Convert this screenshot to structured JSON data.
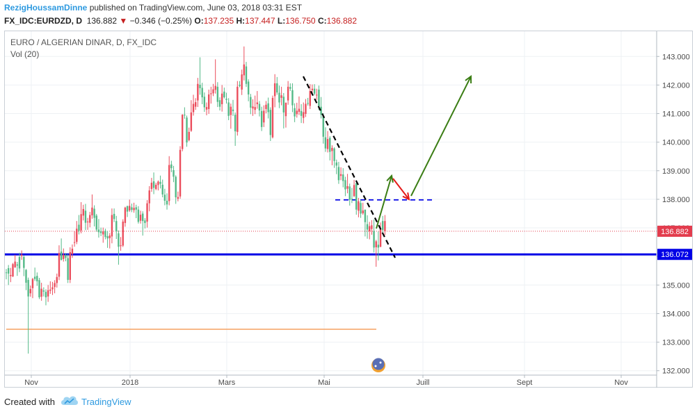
{
  "header": {
    "author": "RezigHoussamDinne",
    "published_text": "published on TradingView.com, June 03, 2018 03:31 EST",
    "symbol": "FX_IDC:EURDZD, D",
    "last": "136.882",
    "change_arrow": "▼",
    "change": "−0.346 (−0.25%)",
    "o_label": "O:",
    "o_value": "137.235",
    "h_label": "H:",
    "h_value": "137.447",
    "l_label": "L:",
    "l_value": "136.750",
    "c_label": "C:",
    "c_value": "136.882"
  },
  "legend": {
    "title": "EURO / ALGERIAN DINAR, D, FX_IDC",
    "volume": "Vol (20)"
  },
  "footer": {
    "created_with": "Created with",
    "brand": "TradingView",
    "logo_icon": "tradingview-cloud-icon"
  },
  "colors": {
    "up": "#53b987",
    "down": "#eb4d5c",
    "support": "#0000e6",
    "resistance_dashed": "#0000e6",
    "projection": "#3a7d14",
    "pullback": "#e41a1a",
    "trend": "#000000",
    "low_line": "#f5a060",
    "price_tag": "#e33c4d"
  },
  "chart_data": {
    "type": "candlestick",
    "title": "EURO / ALGERIAN DINAR, D, FX_IDC",
    "ylim": [
      132.0,
      143.5
    ],
    "y_ticks": [
      "132.000",
      "133.000",
      "134.000",
      "135.000",
      "136.000",
      "137.000",
      "138.000",
      "139.000",
      "140.000",
      "141.000",
      "142.000",
      "143.000"
    ],
    "x_ticks": [
      "Nov",
      "2018",
      "Mars",
      "Mai",
      "Juill",
      "Sept",
      "Nov"
    ],
    "last_price": 136.882,
    "support_level": 136.072,
    "support_label": "136.072",
    "last_label": "136.882",
    "resistance_level": 137.98,
    "low_reference_level": 133.45,
    "series": [
      {
        "name": "EURDZD",
        "ohlc": [
          [
            135.43,
            135.56,
            135.2,
            135.44
          ],
          [
            135.4,
            135.7,
            135.0,
            135.59
          ],
          [
            135.35,
            135.6,
            135.1,
            135.31
          ],
          [
            135.73,
            135.77,
            135.28,
            135.3
          ],
          [
            135.82,
            136.06,
            135.6,
            135.62
          ],
          [
            135.68,
            135.81,
            135.32,
            135.72
          ],
          [
            135.58,
            136.13,
            135.45,
            135.98
          ],
          [
            136.06,
            136.21,
            135.88,
            136.02
          ],
          [
            135.6,
            136.04,
            135.31,
            135.98
          ],
          [
            135.08,
            135.56,
            134.82,
            135.53
          ],
          [
            134.6,
            135.26,
            132.6,
            135.18
          ],
          [
            134.86,
            134.98,
            134.59,
            134.71
          ],
          [
            135.21,
            135.25,
            134.54,
            134.89
          ],
          [
            135.21,
            135.61,
            135.14,
            135.29
          ],
          [
            135.13,
            135.44,
            134.97,
            135.32
          ],
          [
            134.57,
            135.25,
            134.51,
            135.17
          ],
          [
            134.87,
            135.08,
            134.45,
            134.59
          ],
          [
            134.77,
            134.92,
            134.6,
            134.81
          ],
          [
            134.57,
            134.85,
            134.29,
            134.76
          ],
          [
            134.82,
            135.0,
            134.41,
            134.6
          ],
          [
            134.84,
            135.13,
            134.69,
            134.8
          ],
          [
            134.92,
            135.11,
            134.65,
            134.85
          ],
          [
            135.07,
            135.17,
            134.71,
            134.93
          ],
          [
            135.28,
            135.4,
            134.91,
            135.07
          ],
          [
            136.12,
            136.39,
            135.17,
            135.29
          ],
          [
            135.88,
            136.63,
            135.86,
            136.17
          ],
          [
            136.06,
            136.28,
            135.82,
            135.91
          ],
          [
            135.95,
            136.12,
            135.83,
            136.05
          ],
          [
            135.18,
            136.08,
            135.07,
            135.94
          ],
          [
            136.15,
            136.32,
            135.07,
            135.18
          ],
          [
            136.27,
            136.42,
            135.95,
            136.08
          ],
          [
            136.5,
            136.88,
            136.34,
            136.48
          ],
          [
            136.97,
            137.24,
            136.43,
            136.51
          ],
          [
            136.9,
            137.45,
            136.77,
            137.11
          ],
          [
            137.48,
            137.9,
            136.81,
            136.91
          ],
          [
            137.66,
            137.81,
            137.26,
            137.43
          ],
          [
            137.18,
            137.84,
            136.92,
            137.6
          ],
          [
            137.22,
            137.35,
            136.93,
            137.2
          ],
          [
            137.45,
            137.56,
            137.02,
            137.18
          ],
          [
            137.71,
            138.17,
            137.32,
            137.44
          ],
          [
            137.35,
            137.79,
            137.05,
            137.67
          ],
          [
            136.94,
            137.49,
            136.87,
            137.43
          ],
          [
            136.85,
            137.31,
            136.66,
            136.94
          ],
          [
            136.82,
            137.01,
            136.71,
            136.88
          ],
          [
            136.88,
            137.01,
            136.48,
            136.77
          ],
          [
            136.68,
            136.97,
            136.6,
            136.9
          ],
          [
            136.63,
            136.89,
            136.3,
            136.71
          ],
          [
            136.73,
            136.82,
            136.28,
            136.64
          ],
          [
            137.45,
            137.68,
            136.46,
            136.7
          ],
          [
            137.31,
            137.68,
            137.2,
            137.49
          ],
          [
            136.88,
            137.42,
            136.61,
            137.24
          ],
          [
            136.34,
            136.91,
            135.71,
            136.81
          ],
          [
            136.39,
            136.68,
            136.2,
            136.36
          ],
          [
            137.22,
            137.3,
            136.33,
            136.38
          ],
          [
            137.71,
            137.74,
            137.04,
            137.17
          ],
          [
            137.57,
            137.78,
            137.38,
            137.76
          ],
          [
            137.77,
            137.99,
            137.56,
            137.61
          ],
          [
            137.63,
            137.85,
            137.55,
            137.72
          ],
          [
            137.7,
            137.88,
            137.53,
            137.62
          ],
          [
            137.64,
            137.81,
            137.34,
            137.72
          ],
          [
            137.21,
            137.76,
            137.15,
            137.64
          ],
          [
            137.46,
            137.6,
            137.15,
            137.25
          ],
          [
            137.24,
            137.58,
            136.73,
            137.5
          ],
          [
            137.17,
            137.34,
            136.98,
            137.26
          ],
          [
            137.86,
            137.97,
            137.01,
            137.22
          ],
          [
            138.31,
            138.46,
            137.58,
            137.86
          ],
          [
            138.58,
            138.75,
            138.26,
            138.36
          ],
          [
            138.4,
            138.94,
            138.18,
            138.63
          ],
          [
            138.51,
            138.58,
            138.32,
            138.36
          ],
          [
            138.62,
            138.66,
            138.31,
            138.5
          ],
          [
            138.54,
            138.83,
            138.38,
            138.61
          ],
          [
            138.17,
            138.69,
            138.07,
            138.51
          ],
          [
            137.95,
            138.37,
            137.79,
            138.16
          ],
          [
            137.82,
            138.21,
            137.64,
            137.95
          ],
          [
            139.2,
            139.51,
            137.79,
            137.94
          ],
          [
            139.09,
            139.35,
            138.95,
            139.22
          ],
          [
            138.79,
            139.17,
            138.6,
            139.02
          ],
          [
            138.07,
            138.84,
            137.84,
            138.79
          ],
          [
            138.08,
            138.27,
            137.93,
            138.02
          ],
          [
            139.73,
            139.86,
            138.02,
            138.1
          ],
          [
            140.96,
            140.98,
            139.68,
            139.76
          ],
          [
            140.95,
            141.22,
            140.82,
            140.96
          ],
          [
            139.99,
            140.93,
            139.84,
            140.86
          ],
          [
            140.36,
            140.51,
            140.03,
            140.07
          ],
          [
            141.04,
            141.47,
            140.36,
            140.4
          ],
          [
            141.34,
            141.66,
            140.93,
            141.05
          ],
          [
            141.4,
            141.54,
            141.13,
            141.24
          ],
          [
            142.04,
            142.25,
            141.23,
            141.46
          ],
          [
            141.89,
            142.97,
            141.66,
            142.01
          ],
          [
            141.57,
            142.08,
            141.33,
            141.9
          ],
          [
            141.22,
            141.74,
            141.06,
            141.59
          ],
          [
            141.23,
            141.39,
            140.94,
            141.14
          ],
          [
            141.67,
            141.84,
            140.99,
            141.16
          ],
          [
            141.71,
            141.94,
            141.35,
            141.68
          ],
          [
            141.85,
            142.04,
            141.61,
            141.71
          ],
          [
            141.97,
            142.9,
            141.7,
            141.83
          ],
          [
            141.41,
            142.1,
            141.23,
            141.94
          ],
          [
            141.24,
            141.57,
            141.11,
            141.47
          ],
          [
            141.7,
            142.0,
            141.07,
            141.33
          ],
          [
            141.57,
            141.91,
            141.53,
            141.77
          ],
          [
            141.48,
            141.73,
            141.35,
            141.52
          ],
          [
            140.92,
            141.54,
            140.77,
            141.39
          ],
          [
            141.24,
            141.35,
            140.47,
            140.95
          ],
          [
            141.09,
            141.48,
            140.92,
            141.14
          ],
          [
            140.38,
            141.04,
            139.87,
            140.96
          ],
          [
            141.94,
            142.14,
            140.23,
            140.36
          ],
          [
            141.97,
            142.14,
            141.92,
            142.01
          ],
          [
            142.37,
            142.54,
            141.65,
            141.84
          ],
          [
            142.72,
            143.35,
            142.16,
            142.34
          ],
          [
            142.04,
            142.81,
            141.93,
            142.65
          ],
          [
            141.67,
            142.2,
            141.43,
            142.12
          ],
          [
            141.21,
            141.69,
            140.98,
            141.58
          ],
          [
            141.25,
            141.5,
            140.92,
            141.18
          ],
          [
            141.23,
            141.63,
            140.98,
            141.13
          ],
          [
            141.39,
            141.79,
            141.17,
            141.33
          ],
          [
            141.11,
            141.44,
            140.9,
            141.34
          ],
          [
            140.53,
            141.24,
            140.39,
            141.09
          ],
          [
            141.1,
            141.29,
            140.53,
            140.69
          ],
          [
            141.31,
            141.44,
            141.01,
            141.16
          ],
          [
            141.05,
            141.56,
            140.83,
            141.36
          ],
          [
            140.25,
            141.22,
            140.04,
            141.13
          ],
          [
            141.55,
            141.63,
            140.13,
            140.17
          ],
          [
            142.06,
            142.38,
            141.22,
            141.61
          ],
          [
            141.74,
            142.28,
            141.66,
            142.06
          ],
          [
            141.39,
            141.98,
            141.19,
            141.73
          ],
          [
            141.64,
            141.94,
            141.29,
            141.55
          ],
          [
            141.04,
            141.72,
            140.48,
            141.59
          ],
          [
            141.38,
            141.39,
            140.51,
            140.91
          ],
          [
            141.94,
            142.14,
            141.31,
            141.46
          ],
          [
            141.87,
            142.06,
            141.79,
            141.93
          ],
          [
            141.29,
            142.06,
            141.05,
            141.82
          ],
          [
            140.9,
            141.36,
            140.7,
            141.19
          ],
          [
            141.1,
            141.38,
            140.86,
            140.98
          ],
          [
            141.17,
            141.6,
            140.95,
            141.06
          ],
          [
            140.92,
            141.33,
            140.67,
            141.09
          ],
          [
            141.05,
            141.39,
            140.66,
            140.85
          ],
          [
            141.34,
            141.51,
            140.88,
            140.99
          ],
          [
            141.36,
            141.55,
            141.28,
            141.37
          ],
          [
            141.79,
            142.03,
            141.16,
            141.27
          ],
          [
            141.87,
            142.02,
            141.66,
            141.82
          ],
          [
            141.7,
            142.03,
            141.64,
            141.87
          ],
          [
            141.66,
            141.87,
            141.48,
            141.64
          ],
          [
            141.25,
            141.98,
            141.12,
            141.84
          ],
          [
            140.96,
            141.58,
            140.83,
            141.24
          ],
          [
            140.19,
            141.01,
            139.95,
            140.93
          ],
          [
            139.78,
            140.52,
            139.66,
            140.17
          ],
          [
            140.11,
            140.39,
            139.64,
            139.76
          ],
          [
            139.66,
            140.21,
            139.36,
            140.15
          ],
          [
            139.8,
            139.89,
            139.19,
            139.69
          ],
          [
            139.34,
            139.82,
            139.1,
            139.78
          ],
          [
            139.18,
            139.39,
            138.88,
            139.29
          ],
          [
            138.67,
            139.31,
            138.54,
            139.13
          ],
          [
            138.88,
            139.12,
            138.67,
            138.82
          ],
          [
            138.64,
            139.09,
            138.42,
            138.87
          ],
          [
            138.35,
            138.79,
            138.11,
            138.67
          ],
          [
            138.46,
            138.89,
            138.21,
            138.37
          ],
          [
            137.98,
            138.55,
            137.78,
            138.45
          ],
          [
            138.02,
            138.4,
            137.87,
            138.02
          ],
          [
            138.5,
            138.68,
            138.08,
            138.11
          ],
          [
            137.64,
            138.52,
            137.46,
            138.57
          ],
          [
            137.93,
            138.05,
            137.37,
            137.6
          ],
          [
            137.5,
            137.98,
            137.35,
            137.87
          ],
          [
            137.61,
            137.88,
            137.46,
            137.51
          ],
          [
            137.2,
            137.63,
            136.7,
            137.64
          ],
          [
            136.94,
            137.44,
            136.62,
            137.13
          ],
          [
            137.06,
            137.21,
            136.6,
            136.88
          ],
          [
            137.09,
            137.27,
            136.76,
            136.96
          ],
          [
            136.31,
            137.29,
            136.14,
            136.89
          ],
          [
            136.53,
            136.58,
            135.64,
            136.32
          ],
          [
            136.31,
            136.87,
            135.86,
            136.41
          ],
          [
            136.95,
            137.19,
            136.32,
            136.34
          ],
          [
            136.93,
            137.42,
            136.79,
            137.24
          ],
          [
            137.24,
            137.45,
            136.75,
            136.88
          ]
        ]
      }
    ]
  }
}
